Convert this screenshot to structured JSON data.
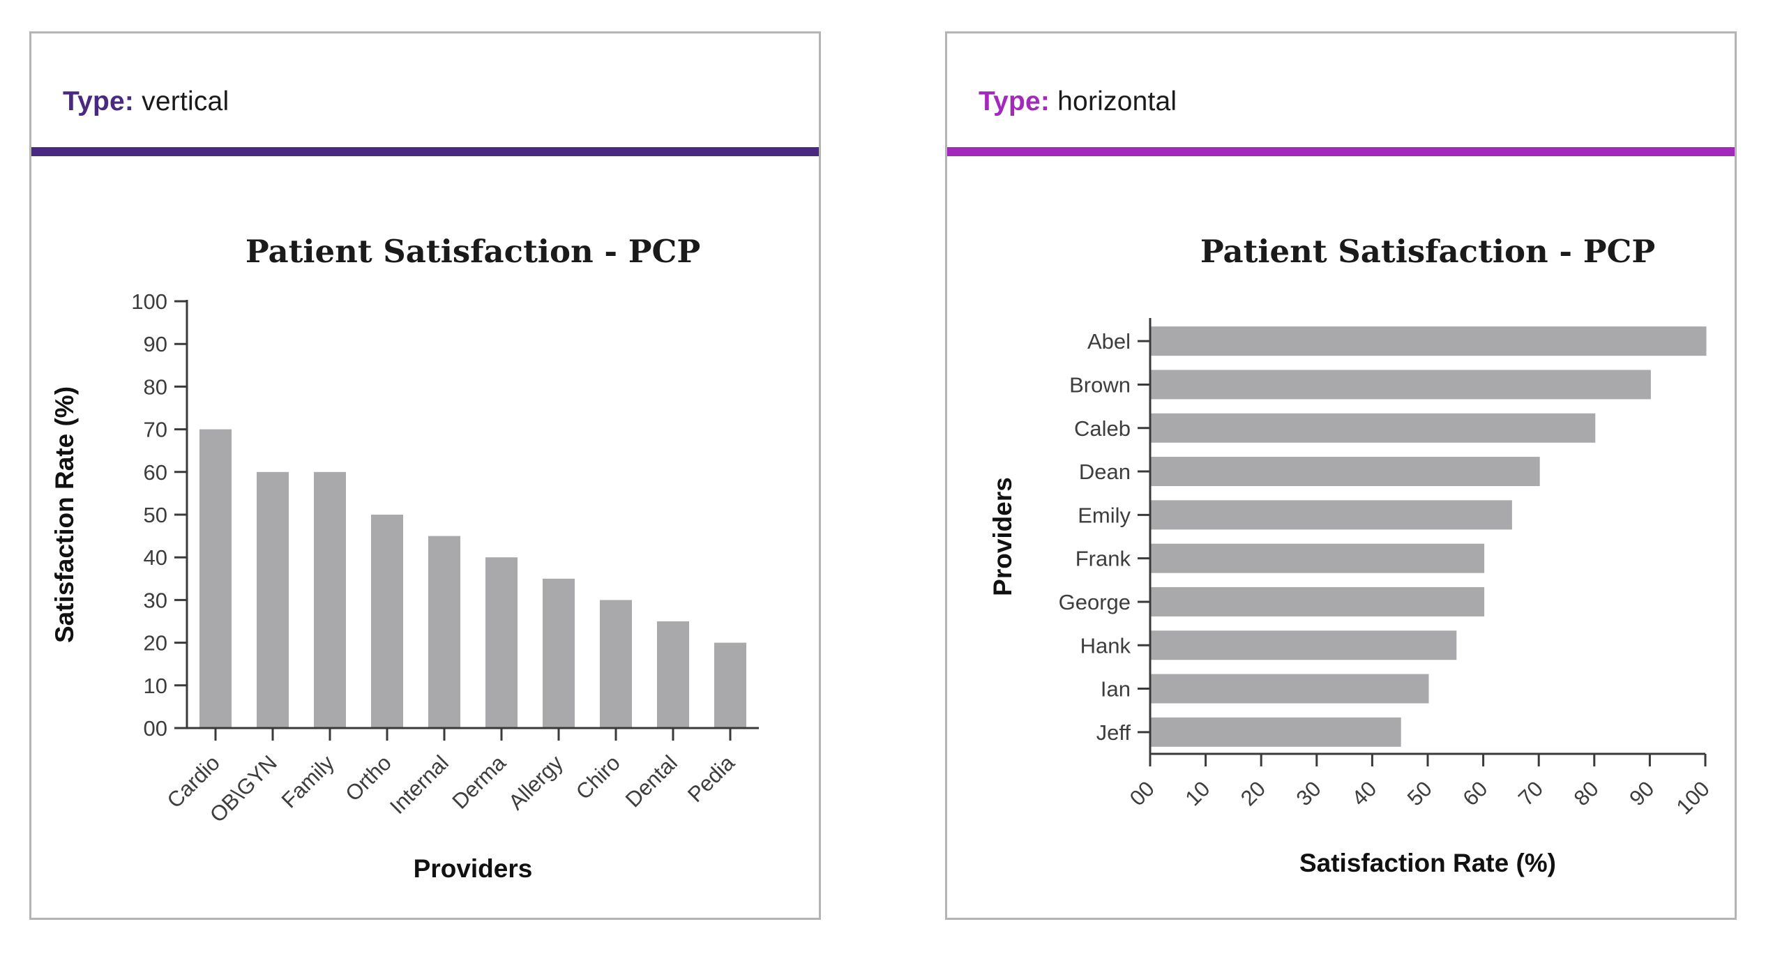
{
  "page": {
    "background": "#ffffff",
    "panel_border_color": "#b4b4b4"
  },
  "panels": [
    {
      "header": {
        "label": "Type:",
        "value": "vertical"
      },
      "accent_color": "#4a2983",
      "chart_index": 0
    },
    {
      "header": {
        "label": "Type:",
        "value": "horizontal"
      },
      "accent_color": "#a329ba",
      "chart_index": 1
    }
  ],
  "chart_data": [
    {
      "type": "bar",
      "orientation": "vertical",
      "title": "Patient Satisfaction - PCP",
      "categories": [
        "Cardio",
        "OB\\GYN",
        "Family",
        "Ortho",
        "Internal",
        "Derma",
        "Allergy",
        "Chiro",
        "Dental",
        "Pedia"
      ],
      "values": [
        70,
        60,
        60,
        50,
        45,
        40,
        35,
        30,
        25,
        20
      ],
      "xlabel": "Providers",
      "ylabel": "Satisfaction Rate (%)",
      "value_axis_range": [
        0,
        100
      ],
      "value_tick_step": 10,
      "value_tick_labels": [
        "00",
        "10",
        "20",
        "30",
        "40",
        "50",
        "60",
        "70",
        "80",
        "90",
        "100"
      ],
      "bar_color": "#a9a9ab",
      "axis_color": "#3a3a3a",
      "grid": false,
      "legend": null
    },
    {
      "type": "bar",
      "orientation": "horizontal",
      "title": "Patient Satisfaction - PCP",
      "categories": [
        "Abel",
        "Brown",
        "Caleb",
        "Dean",
        "Emily",
        "Frank",
        "George",
        "Hank",
        "Ian",
        "Jeff"
      ],
      "values": [
        100,
        90,
        80,
        70,
        65,
        60,
        60,
        55,
        50,
        45
      ],
      "xlabel": "Satisfaction Rate (%)",
      "ylabel": "Providers",
      "value_axis_range": [
        0,
        100
      ],
      "value_tick_step": 10,
      "value_tick_labels": [
        "00",
        "10",
        "20",
        "30",
        "40",
        "50",
        "60",
        "70",
        "80",
        "90",
        "100"
      ],
      "bar_color": "#a9a9ab",
      "axis_color": "#3a3a3a",
      "grid": false,
      "legend": null
    }
  ]
}
